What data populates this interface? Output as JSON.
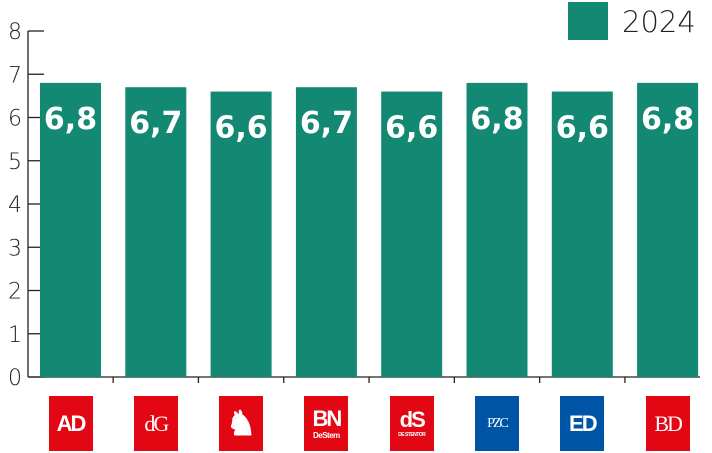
{
  "chart_data": {
    "type": "bar",
    "categories": [
      "AD",
      "dG",
      "Tubantia",
      "BN DeStem",
      "De Stentor",
      "PZC",
      "ED",
      "BD"
    ],
    "series": [
      {
        "name": "2024",
        "values": [
          6.8,
          6.7,
          6.6,
          6.7,
          6.6,
          6.8,
          6.6,
          6.8
        ]
      }
    ],
    "data_labels": [
      "6,8",
      "6,7",
      "6,6",
      "6,7",
      "6,6",
      "6,8",
      "6,6",
      "6,8"
    ],
    "yticks": [
      "0",
      "1",
      "2",
      "3",
      "4",
      "5",
      "6",
      "7",
      "8"
    ],
    "ylim": [
      0,
      8
    ],
    "grid": false,
    "legend": "top-right",
    "bar_color": "#138873",
    "xlabel": "",
    "ylabel": "",
    "title": ""
  },
  "logos": [
    {
      "name": "ad",
      "text": "AD",
      "sub": "",
      "color": "#e30613"
    },
    {
      "name": "dg",
      "text": "dG",
      "sub": "",
      "color": "#e30613"
    },
    {
      "name": "tubantia",
      "text": "",
      "sub": "",
      "color": "#e30613"
    },
    {
      "name": "bn-destem",
      "text": "BN",
      "sub": "DeStem",
      "color": "#e30613"
    },
    {
      "name": "de-stentor",
      "text": "dS",
      "sub": "DE STENTOR",
      "color": "#e30613"
    },
    {
      "name": "pzc",
      "text": "PZC",
      "sub": "",
      "color": "#0054a6"
    },
    {
      "name": "ed",
      "text": "ED",
      "sub": "",
      "color": "#0054a6"
    },
    {
      "name": "bd",
      "text": "BD",
      "sub": "",
      "color": "#e30613"
    }
  ]
}
